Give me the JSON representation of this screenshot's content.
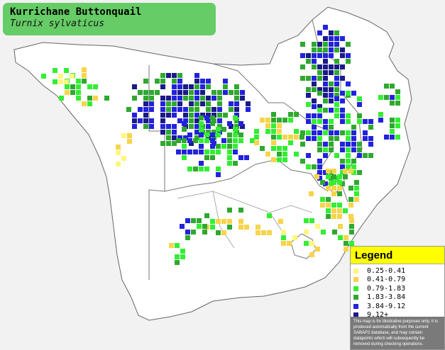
{
  "title": {
    "common_name": "Kurrichane Buttonquail",
    "scientific_name": "Turnix sylvaticus",
    "background_color": "#66cc66"
  },
  "map": {
    "region": "Southern Africa",
    "land_color": "#ffffff",
    "sea_color": "#f2f2f2",
    "border_color": "#777777"
  },
  "legend": {
    "heading": "Legend",
    "heading_color": "#ffff00",
    "items": [
      {
        "label": "0.25-0.41",
        "color": "#fff67f"
      },
      {
        "label": "0.41-0.79",
        "color": "#f7d44a"
      },
      {
        "label": "0.79-1.83",
        "color": "#33ee33"
      },
      {
        "label": "1.83-3.84",
        "color": "#2fa82f"
      },
      {
        "label": "3.84-9.12",
        "color": "#2222dd"
      },
      {
        "label": "9.12+",
        "color": "#1a1a88"
      }
    ],
    "note": "This map is for illustrative purposes only; it is produced automatically from the current SABAP2 database, and may contain datapoints which will subsequently be removed during checking operations."
  }
}
